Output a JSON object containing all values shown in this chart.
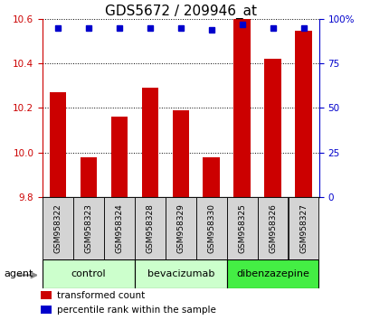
{
  "title": "GDS5672 / 209946_at",
  "samples": [
    "GSM958322",
    "GSM958323",
    "GSM958324",
    "GSM958328",
    "GSM958329",
    "GSM958330",
    "GSM958325",
    "GSM958326",
    "GSM958327"
  ],
  "bar_values": [
    10.27,
    9.98,
    10.16,
    10.29,
    10.19,
    9.98,
    10.6,
    10.42,
    10.55
  ],
  "percentile_values": [
    95,
    95,
    95,
    95,
    95,
    94,
    97,
    95,
    95
  ],
  "bar_color": "#cc0000",
  "percentile_color": "#0000cc",
  "ylim_left": [
    9.8,
    10.6
  ],
  "ylim_right": [
    0,
    100
  ],
  "yticks_left": [
    9.8,
    10.0,
    10.2,
    10.4,
    10.6
  ],
  "yticks_right": [
    0,
    25,
    50,
    75,
    100
  ],
  "groups": [
    {
      "label": "control",
      "indices": [
        0,
        1,
        2
      ],
      "color": "#ccffcc"
    },
    {
      "label": "bevacizumab",
      "indices": [
        3,
        4,
        5
      ],
      "color": "#ccffcc"
    },
    {
      "label": "dibenzazepine",
      "indices": [
        6,
        7,
        8
      ],
      "color": "#44ee44"
    }
  ],
  "agent_label": "agent",
  "legend_items": [
    {
      "label": "transformed count",
      "color": "#cc0000"
    },
    {
      "label": "percentile rank within the sample",
      "color": "#0000cc"
    }
  ],
  "bar_width": 0.55,
  "background_color": "#ffffff",
  "plot_bg_color": "#ffffff",
  "grid_color": "#000000",
  "title_fontsize": 11,
  "tick_fontsize": 7.5,
  "label_fontsize": 8
}
